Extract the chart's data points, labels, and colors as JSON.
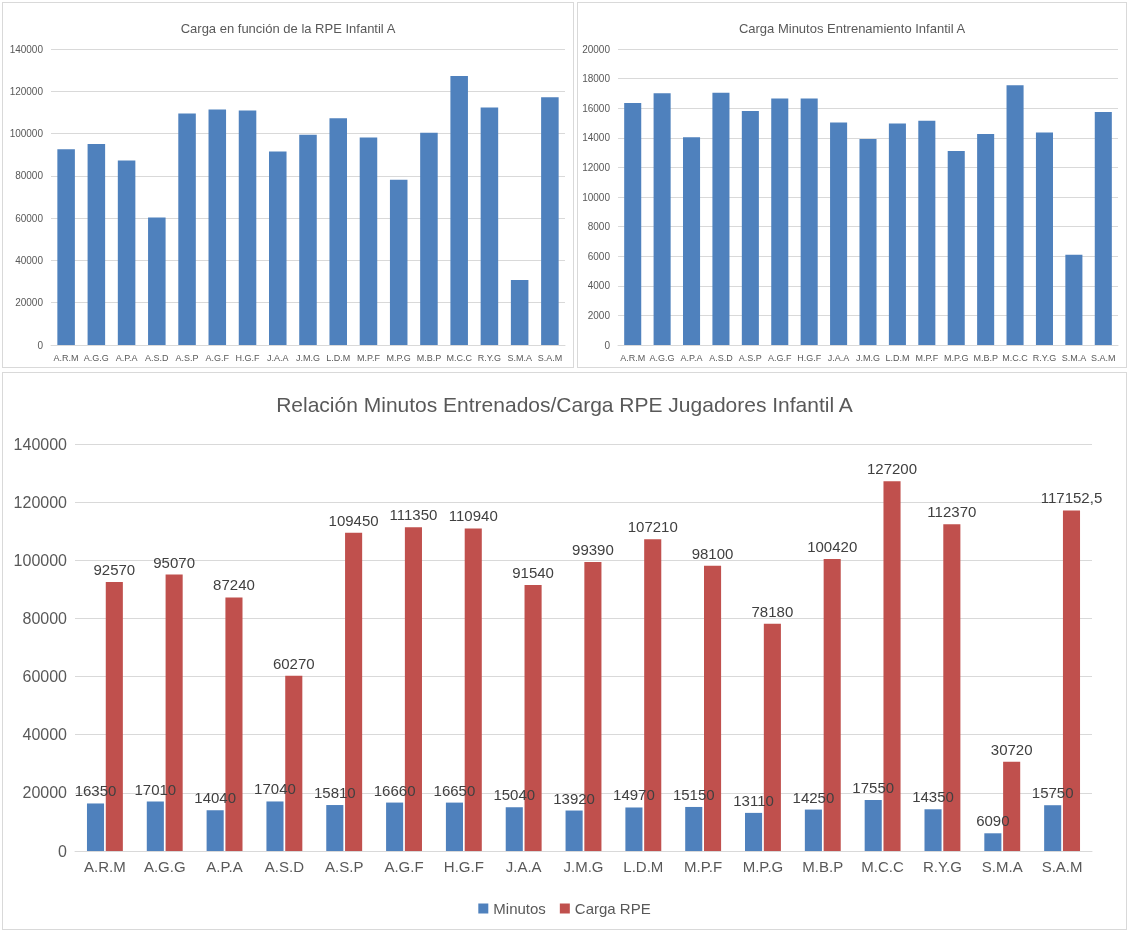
{
  "chart_data": [
    {
      "type": "bar",
      "title": "Carga en función de la RPE Infantil A",
      "categories": [
        "A.R.M",
        "A.G.G",
        "A.P.A",
        "A.S.D",
        "A.S.P",
        "A.G.F",
        "H.G.F",
        "J.A.A",
        "J.M.G",
        "L.D.M",
        "M.P.F",
        "M.P.G",
        "M.B.P",
        "M.C.C",
        "R.Y.G",
        "S.M.A",
        "S.A.M"
      ],
      "values": [
        92570,
        95070,
        87240,
        60270,
        109450,
        111350,
        110940,
        91540,
        99390,
        107210,
        98100,
        78180,
        100420,
        127200,
        112370,
        30720,
        117152.5
      ],
      "color": "#4f81bd",
      "ylim": [
        0,
        140000
      ],
      "yticks": [
        0,
        20000,
        40000,
        60000,
        80000,
        100000,
        120000,
        140000
      ],
      "grid": "y"
    },
    {
      "type": "bar",
      "title": "Carga Minutos Entrenamiento Infantil A",
      "categories": [
        "A.R.M",
        "A.G.G",
        "A.P.A",
        "A.S.D",
        "A.S.P",
        "A.G.F",
        "H.G.F",
        "J.A.A",
        "J.M.G",
        "L.D.M",
        "M.P.F",
        "M.P.G",
        "M.B.P",
        "M.C.C",
        "R.Y.G",
        "S.M.A",
        "S.A.M"
      ],
      "values": [
        16350,
        17010,
        14040,
        17040,
        15810,
        16660,
        16650,
        15040,
        13920,
        14970,
        15150,
        13110,
        14250,
        17550,
        14350,
        6090,
        15750
      ],
      "color": "#4f81bd",
      "ylim": [
        0,
        20000
      ],
      "yticks": [
        0,
        2000,
        4000,
        6000,
        8000,
        10000,
        12000,
        14000,
        16000,
        18000,
        20000
      ],
      "grid": "y"
    },
    {
      "type": "bar",
      "title": "Relación Minutos Entrenados/Carga RPE Jugadores Infantil A",
      "categories": [
        "A.R.M",
        "A.G.G",
        "A.P.A",
        "A.S.D",
        "A.S.P",
        "A.G.F",
        "H.G.F",
        "J.A.A",
        "J.M.G",
        "L.D.M",
        "M.P.F",
        "M.P.G",
        "M.B.P",
        "M.C.C",
        "R.Y.G",
        "S.M.A",
        "S.A.M"
      ],
      "series": [
        {
          "name": "Minutos",
          "color": "#4f81bd",
          "values": [
            16350,
            17010,
            14040,
            17040,
            15810,
            16660,
            16650,
            15040,
            13920,
            14970,
            15150,
            13110,
            14250,
            17550,
            14350,
            6090,
            15750
          ],
          "value_labels": [
            "16350",
            "17010",
            "14040",
            "17040",
            "15810",
            "16660",
            "16650",
            "15040",
            "13920",
            "14970",
            "15150",
            "13110",
            "14250",
            "17550",
            "14350",
            "6090",
            "15750"
          ]
        },
        {
          "name": "Carga RPE",
          "color": "#c0504d",
          "values": [
            92570,
            95070,
            87240,
            60270,
            109450,
            111350,
            110940,
            91540,
            99390,
            107210,
            98100,
            78180,
            100420,
            127200,
            112370,
            30720,
            117152.5
          ],
          "value_labels": [
            "92570",
            "95070",
            "87240",
            "60270",
            "109450",
            "111350",
            "110940",
            "91540",
            "99390",
            "107210",
            "98100",
            "78180",
            "100420",
            "127200",
            "112370",
            "30720",
            "117152,5"
          ]
        }
      ],
      "ylim": [
        0,
        140000
      ],
      "yticks": [
        0,
        20000,
        40000,
        60000,
        80000,
        100000,
        120000,
        140000
      ],
      "grid": "y",
      "legend": "bottom"
    }
  ]
}
